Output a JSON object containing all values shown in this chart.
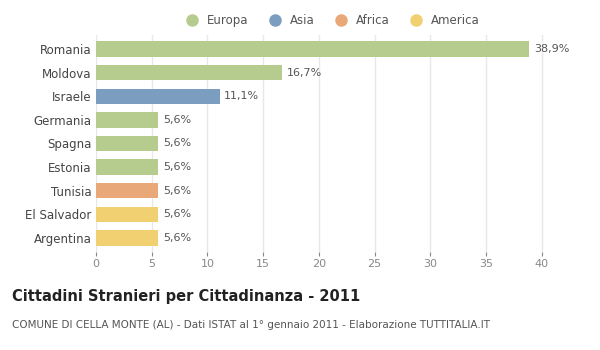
{
  "categories": [
    "Romania",
    "Moldova",
    "Israele",
    "Germania",
    "Spagna",
    "Estonia",
    "Tunisia",
    "El Salvador",
    "Argentina"
  ],
  "values": [
    38.9,
    16.7,
    11.1,
    5.6,
    5.6,
    5.6,
    5.6,
    5.6,
    5.6
  ],
  "labels": [
    "38,9%",
    "16,7%",
    "11,1%",
    "5,6%",
    "5,6%",
    "5,6%",
    "5,6%",
    "5,6%",
    "5,6%"
  ],
  "colors": [
    "#b5cc8e",
    "#b5cc8e",
    "#7b9dc0",
    "#b5cc8e",
    "#b5cc8e",
    "#b5cc8e",
    "#e8a878",
    "#f0d070",
    "#f0d070"
  ],
  "legend_labels": [
    "Europa",
    "Asia",
    "Africa",
    "America"
  ],
  "legend_colors": [
    "#b5cc8e",
    "#7b9dc0",
    "#e8a878",
    "#f0d070"
  ],
  "xlim": [
    0,
    42
  ],
  "xticks": [
    0,
    5,
    10,
    15,
    20,
    25,
    30,
    35,
    40
  ],
  "title": "Cittadini Stranieri per Cittadinanza - 2011",
  "subtitle": "COMUNE DI CELLA MONTE (AL) - Dati ISTAT al 1° gennaio 2011 - Elaborazione TUTTITALIA.IT",
  "background_color": "#ffffff",
  "bar_height": 0.65,
  "label_fontsize": 8,
  "title_fontsize": 10.5,
  "subtitle_fontsize": 7.5,
  "ytick_fontsize": 8.5,
  "xtick_fontsize": 8,
  "grid_color": "#e8e8e8",
  "label_color": "#555555"
}
